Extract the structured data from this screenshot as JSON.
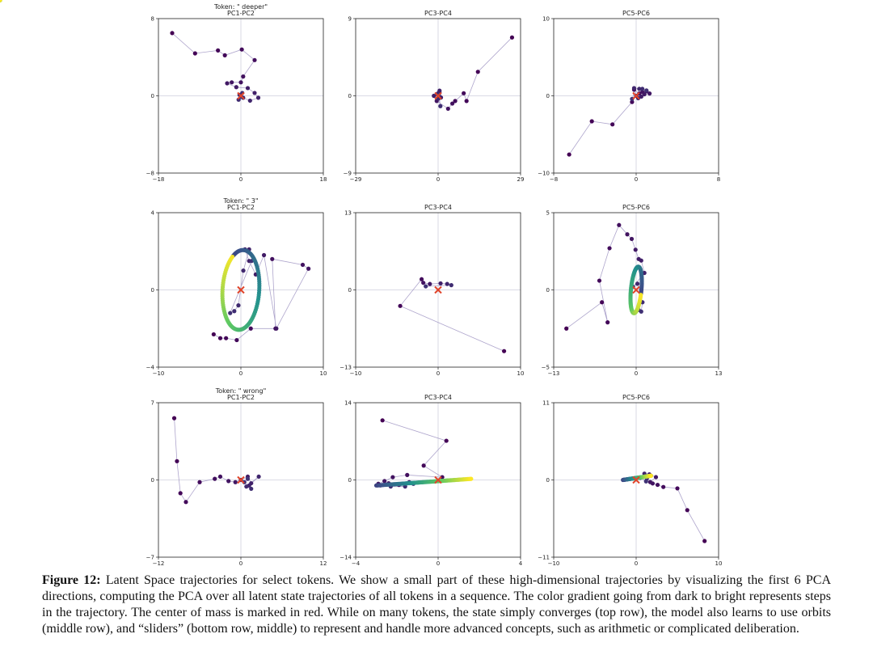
{
  "chart_data": [
    {
      "type": "scatter",
      "token_label": "Token: \" deeper\"",
      "title": "PC1-PC2",
      "xlim": [
        -18,
        18
      ],
      "ylim": [
        -8,
        8
      ],
      "xticks": [
        "−18",
        "0",
        "18"
      ],
      "yticks": [
        "−8",
        "0",
        "8"
      ],
      "center_of_mass": [
        0,
        0
      ],
      "points": [
        [
          -15,
          6.5
        ],
        [
          -10,
          4.4
        ],
        [
          -5,
          4.7
        ],
        [
          -3.5,
          4.2
        ],
        [
          0.2,
          4.8
        ],
        [
          3,
          3.7
        ],
        [
          0.5,
          2
        ],
        [
          0,
          1.4
        ],
        [
          -2,
          1.4
        ],
        [
          -3,
          1.3
        ],
        [
          -1,
          0.9
        ],
        [
          1.5,
          0.8
        ],
        [
          3,
          0.3
        ],
        [
          3.8,
          -0.2
        ],
        [
          2,
          -0.5
        ],
        [
          0.5,
          -0.2
        ],
        [
          -0.5,
          -0.4
        ],
        [
          -0.3,
          0.1
        ],
        [
          0.3,
          0.3
        ],
        [
          0.1,
          -0.1
        ]
      ]
    },
    {
      "type": "scatter",
      "title": "PC3-PC4",
      "xlim": [
        -29,
        29
      ],
      "ylim": [
        -9,
        9
      ],
      "xticks": [
        "−29",
        "0",
        "29"
      ],
      "yticks": [
        "−9",
        "0",
        "9"
      ],
      "center_of_mass": [
        0,
        0
      ],
      "points": [
        [
          26,
          6.8
        ],
        [
          14,
          2.8
        ],
        [
          10,
          -0.6
        ],
        [
          9,
          0.3
        ],
        [
          6,
          -0.6
        ],
        [
          5,
          -0.9
        ],
        [
          3.5,
          -1.5
        ],
        [
          -0.5,
          -0.6
        ],
        [
          1,
          -0.2
        ],
        [
          0.5,
          0.4
        ],
        [
          -1.5,
          0
        ],
        [
          0.5,
          0.6
        ],
        [
          0,
          0.3
        ],
        [
          -0.3,
          0.2
        ],
        [
          0.2,
          -0.3
        ],
        [
          0.8,
          -1.2
        ],
        [
          0.3,
          0.1
        ]
      ]
    },
    {
      "type": "scatter",
      "title": "PC5-PC6",
      "xlim": [
        -8,
        8
      ],
      "ylim": [
        -10,
        10
      ],
      "xticks": [
        "−8",
        "0",
        "8"
      ],
      "yticks": [
        "−10",
        "0",
        "10"
      ],
      "center_of_mass": [
        0,
        0
      ],
      "points": [
        [
          -6.5,
          -7.6
        ],
        [
          -4.3,
          -3.3
        ],
        [
          -2.3,
          -3.7
        ],
        [
          -0.4,
          -0.8
        ],
        [
          -0.2,
          0.8
        ],
        [
          0.3,
          0.3
        ],
        [
          0.6,
          0.5
        ],
        [
          1,
          0.6
        ],
        [
          1.3,
          0.3
        ],
        [
          0.8,
          0.2
        ],
        [
          0.5,
          -0.1
        ],
        [
          0.2,
          -0.3
        ],
        [
          0,
          0
        ],
        [
          -0.2,
          1
        ],
        [
          0.3,
          0.9
        ],
        [
          0.6,
          0.9
        ],
        [
          1,
          0.7
        ],
        [
          -0.4,
          -0.4
        ]
      ]
    },
    {
      "type": "scatter",
      "token_label": "Token: \" 3\"",
      "title": "PC1-PC2",
      "xlim": [
        -10,
        10
      ],
      "ylim": [
        -4,
        4
      ],
      "xticks": [
        "−10",
        "0",
        "10"
      ],
      "yticks": [
        "−4",
        "0",
        "4"
      ],
      "center_of_mass": [
        0,
        0
      ],
      "orbit": [
        -2,
        2.3,
        -1.1
      ],
      "points": [
        [
          -3.3,
          -2.3
        ],
        [
          -2.5,
          -2.5
        ],
        [
          -1.8,
          -2.5
        ],
        [
          -0.5,
          -2.6
        ],
        [
          1.2,
          -2.0
        ],
        [
          4.2,
          -2.0
        ],
        [
          3.8,
          1.6
        ],
        [
          7.5,
          1.3
        ],
        [
          8.2,
          1.1
        ],
        [
          4.3,
          -2.0
        ],
        [
          2.8,
          1.8
        ],
        [
          1.8,
          0.8
        ],
        [
          1,
          1.5
        ],
        [
          0.5,
          2.1
        ],
        [
          1,
          2.1
        ],
        [
          0.3,
          1
        ],
        [
          -0.3,
          -0.8
        ],
        [
          -0.8,
          -1.1
        ],
        [
          -1.3,
          -1.2
        ],
        [
          1.3,
          1.5
        ]
      ]
    },
    {
      "type": "scatter",
      "title": "PC3-PC4",
      "xlim": [
        -10,
        10
      ],
      "ylim": [
        -13,
        13
      ],
      "xticks": [
        "−10",
        "0",
        "10"
      ],
      "yticks": [
        "−13",
        "0",
        "13"
      ],
      "center_of_mass": [
        0,
        0
      ],
      "orbit": [
        1.8,
        0.45
      ],
      "points": [
        [
          8,
          -10.3
        ],
        [
          -4.6,
          -2.7
        ],
        [
          -2,
          1.8
        ],
        [
          -1.8,
          1.2
        ],
        [
          -1,
          1
        ],
        [
          0.3,
          1.1
        ],
        [
          1.1,
          1
        ],
        [
          1.6,
          0.8
        ],
        [
          -1.5,
          0.6
        ]
      ]
    },
    {
      "type": "scatter",
      "title": "PC5-PC6",
      "xlim": [
        -13,
        13
      ],
      "ylim": [
        -5,
        5
      ],
      "xticks": [
        "−13",
        "0",
        "13"
      ],
      "yticks": [
        "−5",
        "0",
        "5"
      ],
      "center_of_mass": [
        0,
        0
      ],
      "orbit": [
        0.8,
        1.55,
        -0.3
      ],
      "points": [
        [
          -11,
          -2.5
        ],
        [
          -5.4,
          -0.8
        ],
        [
          -4.5,
          -2.1
        ],
        [
          -5.8,
          0.6
        ],
        [
          -4.2,
          2.7
        ],
        [
          -2.7,
          4.2
        ],
        [
          -1.4,
          3.6
        ],
        [
          -0.7,
          3.3
        ],
        [
          -0.1,
          2.6
        ],
        [
          0.4,
          2
        ],
        [
          0.8,
          1.9
        ],
        [
          1.3,
          1.1
        ],
        [
          -0.5,
          0.2
        ],
        [
          0.2,
          0.4
        ],
        [
          1,
          -0.8
        ],
        [
          0.8,
          -1.4
        ],
        [
          0.4,
          -1.3
        ]
      ]
    },
    {
      "type": "scatter",
      "token_label": "Token: \" wrong\"",
      "title": "PC1-PC2",
      "xlim": [
        -12,
        12
      ],
      "ylim": [
        -7,
        7
      ],
      "xticks": [
        "−12",
        "0",
        "12"
      ],
      "yticks": [
        "−7",
        "0",
        "7"
      ],
      "center_of_mass": [
        0,
        0
      ],
      "points": [
        [
          -9.7,
          5.6
        ],
        [
          -9.3,
          1.7
        ],
        [
          -8.8,
          -1.2
        ],
        [
          -8,
          -2
        ],
        [
          -6,
          -0.2
        ],
        [
          -3.8,
          0.1
        ],
        [
          -3,
          0.3
        ],
        [
          -1.8,
          -0.1
        ],
        [
          -0.8,
          -0.2
        ],
        [
          0,
          0
        ],
        [
          1,
          0.3
        ],
        [
          1.5,
          -0.3
        ],
        [
          1.2,
          -0.5
        ],
        [
          2.6,
          0.3
        ],
        [
          0.8,
          -0.6
        ],
        [
          1.5,
          -0.8
        ],
        [
          0.5,
          -0.2
        ],
        [
          1,
          0.1
        ]
      ]
    },
    {
      "type": "scatter",
      "title": "PC3-PC4",
      "xlim": [
        -4,
        4
      ],
      "ylim": [
        -14,
        14
      ],
      "xticks": [
        "−4",
        "0",
        "4"
      ],
      "yticks": [
        "−14",
        "0",
        "14"
      ],
      "center_of_mass": [
        0,
        0
      ],
      "slider": [
        [
          -3,
          -1
        ],
        [
          1.6,
          0.2
        ]
      ],
      "points": [
        [
          -2.7,
          10.8
        ],
        [
          0.4,
          7.1
        ],
        [
          -0.7,
          2.6
        ],
        [
          0.2,
          0.5
        ],
        [
          -1.5,
          0.9
        ],
        [
          -2.2,
          0.5
        ],
        [
          -2.6,
          -0.2
        ],
        [
          -2.9,
          -0.7
        ],
        [
          -2.4,
          -0.6
        ],
        [
          -1.9,
          -0.9
        ],
        [
          -1.4,
          -0.4
        ],
        [
          -2.8,
          -1
        ],
        [
          -1.6,
          -1.2
        ],
        [
          -2.3,
          -1.2
        ],
        [
          -1.2,
          -0.7
        ]
      ]
    },
    {
      "type": "scatter",
      "title": "PC5-PC6",
      "xlim": [
        -10,
        10
      ],
      "ylim": [
        -11,
        11
      ],
      "xticks": [
        "−10",
        "0",
        "10"
      ],
      "yticks": [
        "−11",
        "0",
        "11"
      ],
      "center_of_mass": [
        0,
        0
      ],
      "slider": [
        [
          -1.6,
          0
        ],
        [
          1.8,
          0.6
        ]
      ],
      "points": [
        [
          8.3,
          -8.7
        ],
        [
          6.2,
          -4.3
        ],
        [
          5,
          -1.2
        ],
        [
          3.3,
          -1
        ],
        [
          2.6,
          -0.7
        ],
        [
          2,
          -0.5
        ],
        [
          1.7,
          -0.3
        ],
        [
          2.4,
          0.4
        ],
        [
          1.6,
          0.8
        ],
        [
          1,
          0.9
        ],
        [
          1.8,
          0.6
        ],
        [
          1.3,
          0.2
        ],
        [
          0.5,
          0.3
        ],
        [
          1.2,
          -0.2
        ]
      ]
    }
  ],
  "caption": {
    "label": "Figure 12:",
    "text": "Latent Space trajectories for select tokens. We show a small part of these high-dimensional trajectories by visualizing the first 6 PCA directions, computing the PCA over all latent state trajectories of all tokens in a sequence. The color gradient going from dark to bright represents steps in the trajectory. The center of mass is marked in red. While on many tokens, the state simply converges (top row), the model also learns to use orbits (middle row), and “sliders” (bottom row, middle) to represent and handle more advanced concepts, such as arithmetic or complicated deliberation."
  },
  "colors": {
    "early": "#45226f",
    "trajectory_line": "#9a8fbf",
    "center_marker": "#e0442a",
    "axis_line": "#cfcfdc"
  }
}
